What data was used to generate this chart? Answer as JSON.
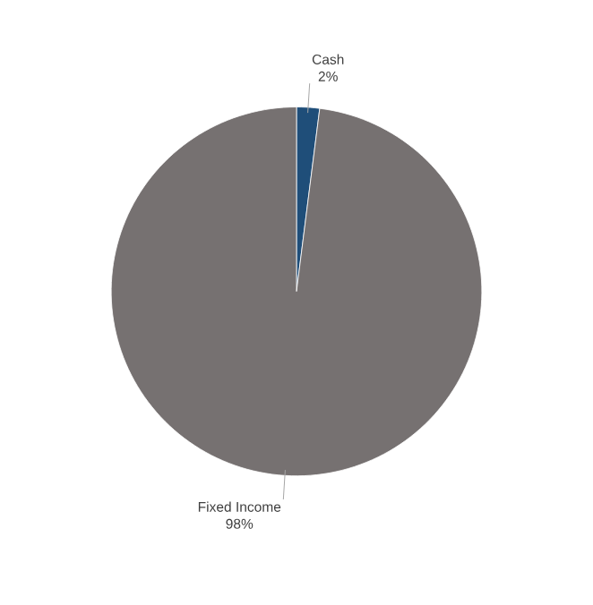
{
  "chart_data": {
    "type": "pie",
    "categories": [
      "Cash",
      "Fixed Income"
    ],
    "values": [
      2,
      98
    ],
    "value_labels": [
      "2%",
      "98%"
    ],
    "colors": [
      "#1f4e79",
      "#767171"
    ]
  }
}
